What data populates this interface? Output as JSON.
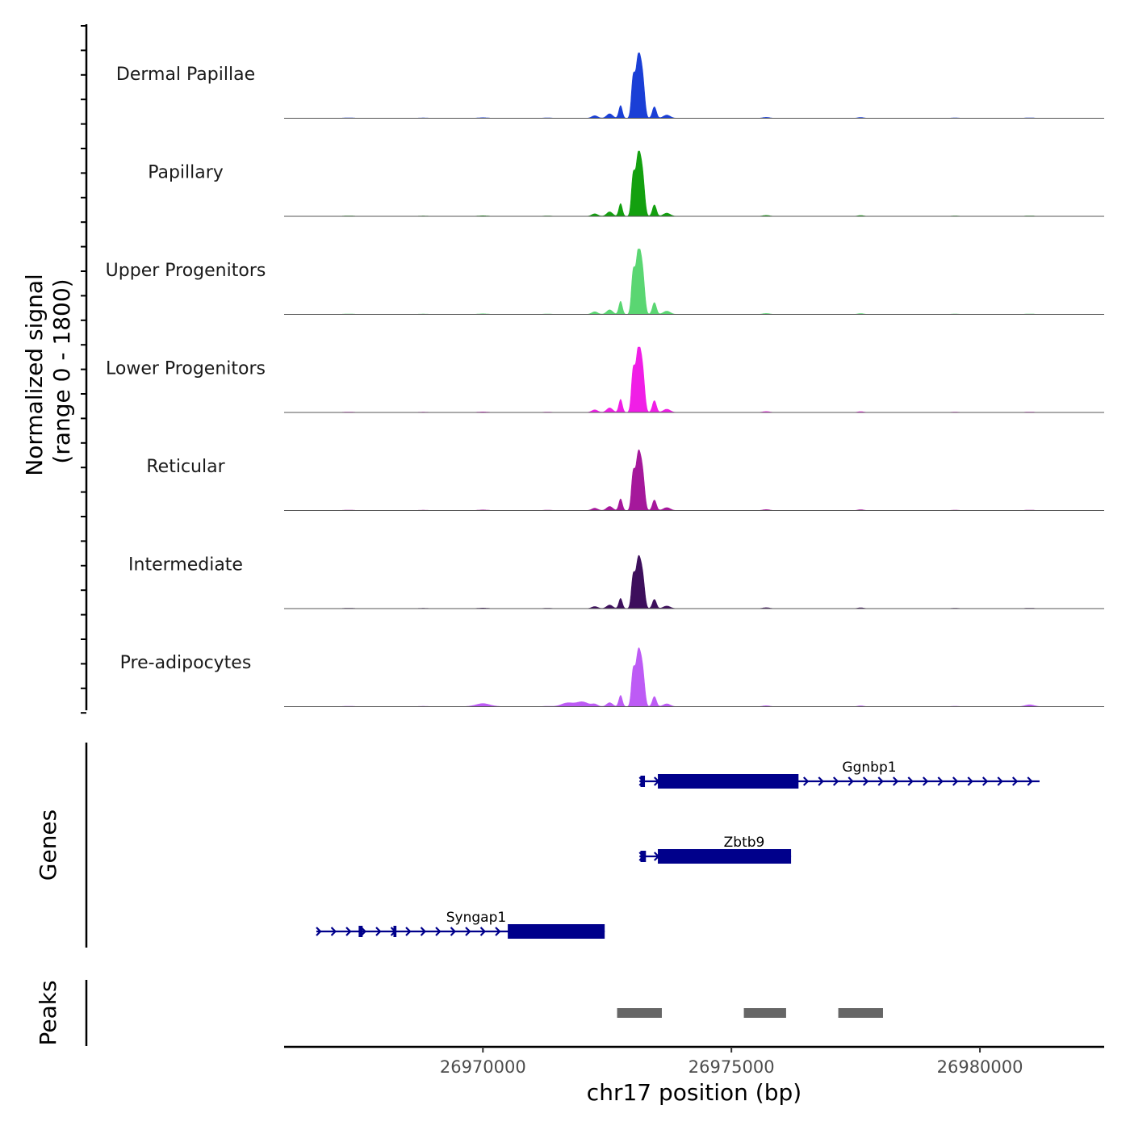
{
  "chart_data": {
    "type": "area",
    "chromosome": "chr17",
    "x_range": [
      26966000,
      26982500
    ],
    "y_label_line1": "Normalized signal",
    "y_label_line2": "(range 0 - 1800)",
    "y_range": [
      0,
      1800
    ],
    "x_label": "chr17 position (bp)",
    "x_ticks": [
      {
        "value": 26970000,
        "label": "26970000"
      },
      {
        "value": 26975000,
        "label": "26975000"
      },
      {
        "value": 26980000,
        "label": "26980000"
      }
    ],
    "tracks": [
      {
        "name": "Dermal Papillae",
        "color": "#1a3fd6",
        "peak": 1750,
        "extra": []
      },
      {
        "name": "Papillary",
        "color": "#13a00f",
        "peak": 1750,
        "extra": []
      },
      {
        "name": "Upper Progenitors",
        "color": "#5ad672",
        "peak": 1800,
        "extra": []
      },
      {
        "name": "Lower Progenitors",
        "color": "#f01ee6",
        "peak": 1800,
        "extra": []
      },
      {
        "name": "Reticular",
        "color": "#a5189b",
        "peak": 1600,
        "extra": []
      },
      {
        "name": "Intermediate",
        "color": "#3d0f5c",
        "peak": 1400,
        "extra": []
      },
      {
        "name": "Pre-adipocytes",
        "color": "#bd5bf5",
        "peak": 1550,
        "extra": [
          {
            "center": 26970000,
            "height": 70,
            "width": 150
          },
          {
            "center": 26971700,
            "height": 100,
            "width": 120
          },
          {
            "center": 26972000,
            "height": 130,
            "width": 120
          },
          {
            "center": 26981000,
            "height": 40,
            "width": 90
          }
        ]
      }
    ],
    "genes_label": "Genes",
    "genes": [
      {
        "name": "Ggnbp1",
        "start": 26973150,
        "end": 26981200,
        "row": 0,
        "strand": "+",
        "exons": [
          {
            "s": 26973170,
            "e": 26973260,
            "thick": false
          },
          {
            "s": 26973520,
            "e": 26976350,
            "thick": true
          }
        ]
      },
      {
        "name": "Zbtb9",
        "start": 26973150,
        "end": 26976200,
        "row": 1,
        "strand": "+",
        "exons": [
          {
            "s": 26973170,
            "e": 26973280,
            "thick": false
          },
          {
            "s": 26973520,
            "e": 26976200,
            "thick": true
          }
        ]
      },
      {
        "name": "Syngap1",
        "start": 26966650,
        "end": 26972450,
        "row": 2,
        "strand": "+",
        "exons": [
          {
            "s": 26967500,
            "e": 26967580,
            "thick": false
          },
          {
            "s": 26968200,
            "e": 26968260,
            "thick": false
          },
          {
            "s": 26970500,
            "e": 26972450,
            "thick": true
          }
        ]
      }
    ],
    "peaks_label": "Peaks",
    "peaks": [
      {
        "start": 26972700,
        "end": 26973600
      },
      {
        "start": 26975250,
        "end": 26976100
      },
      {
        "start": 26977150,
        "end": 26978050
      }
    ]
  }
}
